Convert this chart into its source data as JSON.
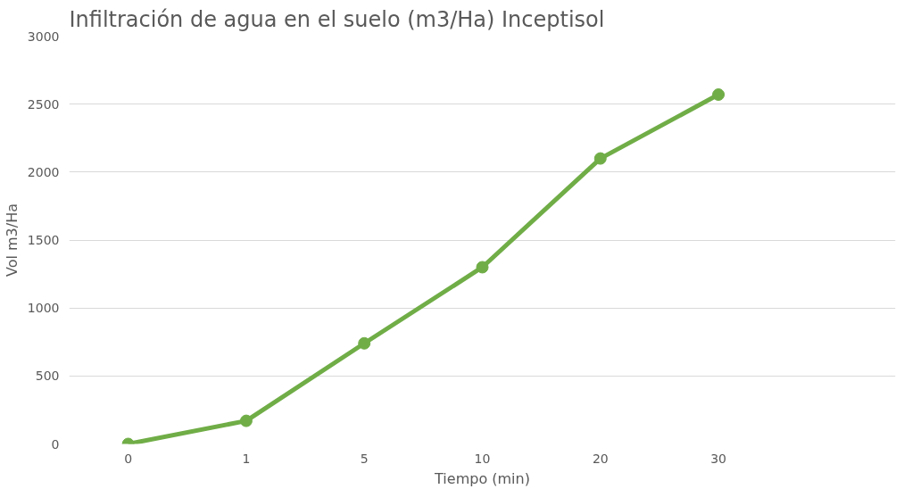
{
  "chart_data": {
    "type": "line",
    "title": "Infiltración de agua en el suelo (m3/Ha) Inceptisol",
    "xlabel": "Tiempo (min)",
    "ylabel": "Vol m3/Ha",
    "categories": [
      "0",
      "1",
      "5",
      "10",
      "20",
      "30",
      null
    ],
    "series": [
      {
        "color": "#70ad47",
        "values": [
          0,
          170,
          740,
          1300,
          2100,
          2570,
          null
        ]
      }
    ],
    "ylim": [
      0,
      3000
    ],
    "yticks": [
      0,
      500,
      1000,
      1500,
      2000,
      2500,
      3000
    ],
    "grid": "y",
    "marker": "circle",
    "line_style": "solid"
  }
}
